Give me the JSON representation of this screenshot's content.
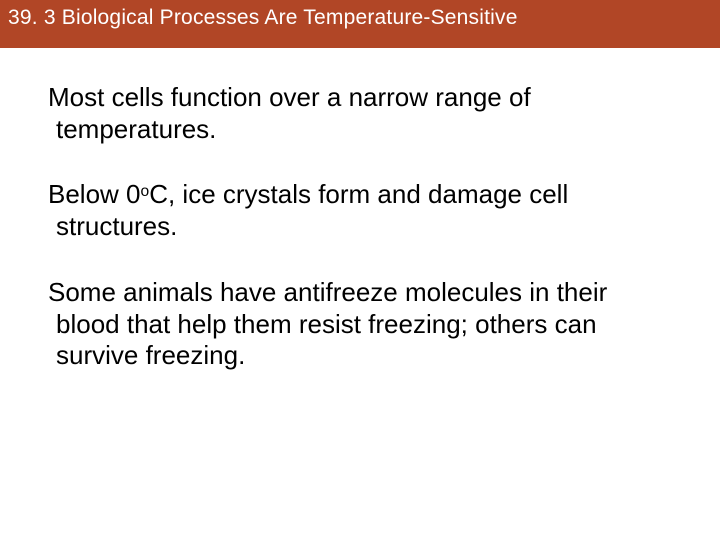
{
  "header": {
    "title": "39. 3 Biological Processes Are Temperature-Sensitive",
    "background_color": "#b14626",
    "text_color": "#ffffff",
    "font_size": 21
  },
  "body": {
    "paragraphs": [
      {
        "text": "Most cells function over a narrow range of temperatures."
      },
      {
        "text_before": "Below 0",
        "degree": "o",
        "text_after": "C, ice crystals form and damage cell structures."
      },
      {
        "text": "Some animals have antifreeze molecules in their blood that help them resist freezing; others can survive freezing."
      }
    ],
    "font_size": 26,
    "text_color": "#000000",
    "background_color": "#ffffff"
  }
}
